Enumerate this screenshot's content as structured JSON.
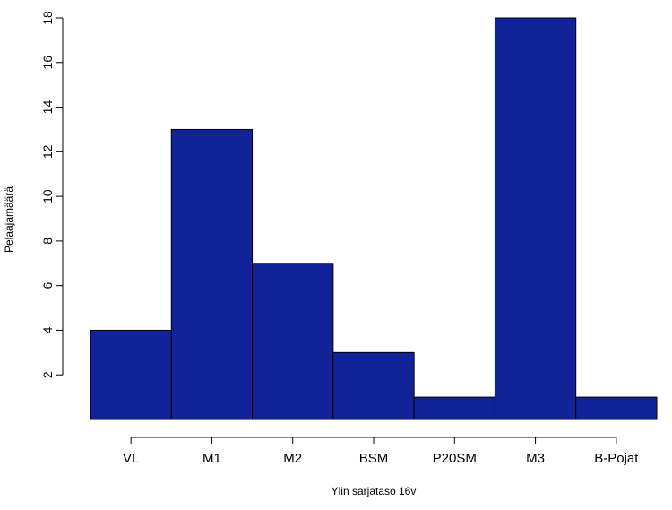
{
  "chart_data": {
    "type": "bar",
    "title": "",
    "xlabel": "Ylin sarjataso 16v",
    "ylabel": "Pelaajamäärä",
    "categories": [
      "VL",
      "M1",
      "M2",
      "BSM",
      "P20SM",
      "M3",
      "B-Pojat"
    ],
    "values": [
      4,
      13,
      7,
      3,
      1,
      18,
      1
    ],
    "yticks": [
      2,
      4,
      6,
      8,
      10,
      12,
      14,
      16,
      18
    ],
    "ylim": [
      0,
      18
    ],
    "grid": false,
    "legend": "none",
    "bar_color": "#12239a",
    "bar_edge_color": "#000000"
  }
}
